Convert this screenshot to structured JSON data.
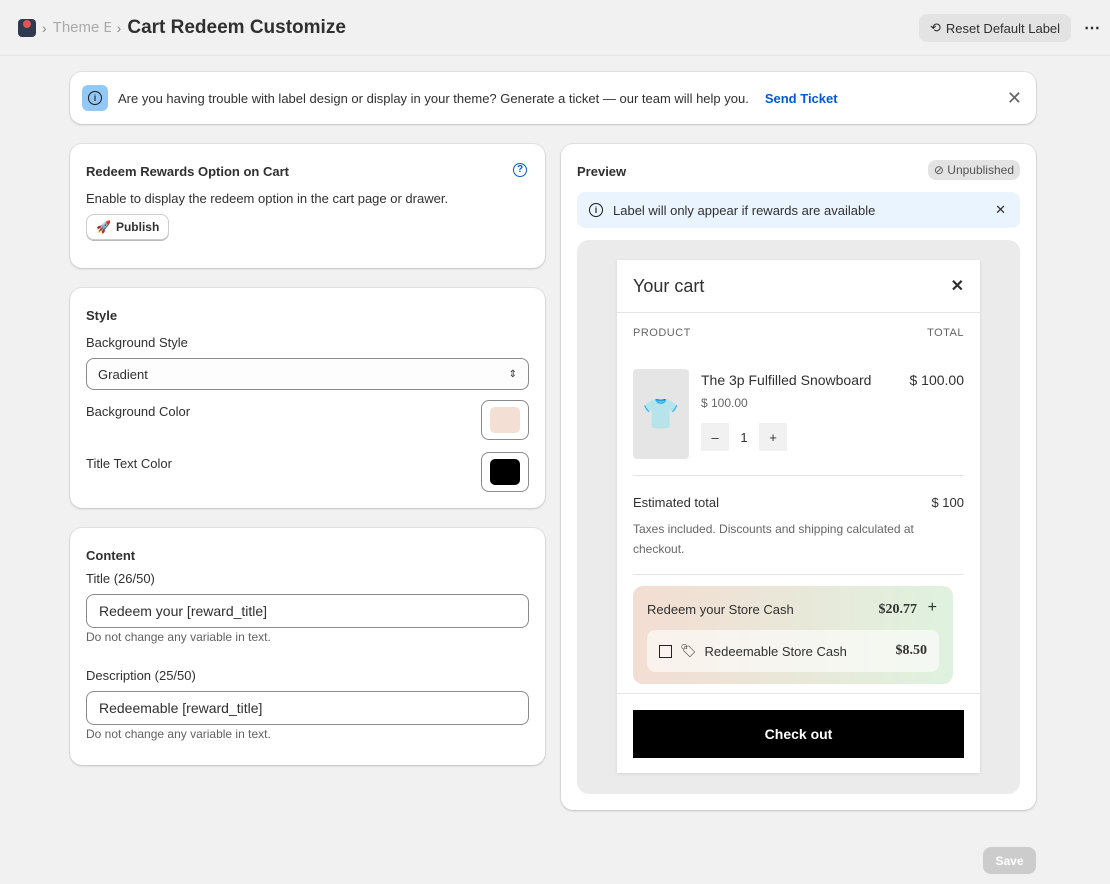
{
  "header": {
    "breadcrumb_parent": "Theme E",
    "title": "Cart Redeem Customize",
    "reset_label": "Reset Default Label",
    "more": "⋯"
  },
  "banner": {
    "text": "Are you having trouble with label design or display in your theme? Generate a ticket — our team will help you.",
    "link": "Send Ticket"
  },
  "publish_card": {
    "title": "Redeem Rewards Option on Cart",
    "description": "Enable to display the redeem option in the cart page or drawer.",
    "button": "Publish"
  },
  "style": {
    "title": "Style",
    "bg_style_label": "Background Style",
    "bg_style_value": "Gradient",
    "bg_color_label": "Background Color",
    "bg_color": "#f3dfd4",
    "title_color_label": "Title Text Color",
    "title_color": "#000000"
  },
  "content": {
    "title": "Content",
    "title_label": "Title (26/50)",
    "title_value": "Redeem your [reward_title]",
    "title_help": "Do not change any variable in text.",
    "desc_label": "Description (25/50)",
    "desc_value": "Redeemable [reward_title]",
    "desc_help": "Do not change any variable in text."
  },
  "preview": {
    "title": "Preview",
    "badge": "Unpublished",
    "notice": "Label will only appear if rewards are available",
    "cart": {
      "title": "Your cart",
      "col_product": "PRODUCT",
      "col_total": "TOTAL",
      "product_name": "The 3p Fulfilled Snowboard",
      "product_price": "$ 100.00",
      "unit_price": "$ 100.00",
      "qty": "1",
      "estimated_label": "Estimated total",
      "estimated_value": "$ 100",
      "tax_note": "Taxes included. Discounts and shipping calculated at checkout.",
      "redeem_title": "Redeem your Store Cash",
      "redeem_amount": "$20.77",
      "redeem_item": "Redeemable Store Cash",
      "redeem_item_amount": "$8.50",
      "checkout": "Check out"
    }
  },
  "footer": {
    "save": "Save"
  }
}
